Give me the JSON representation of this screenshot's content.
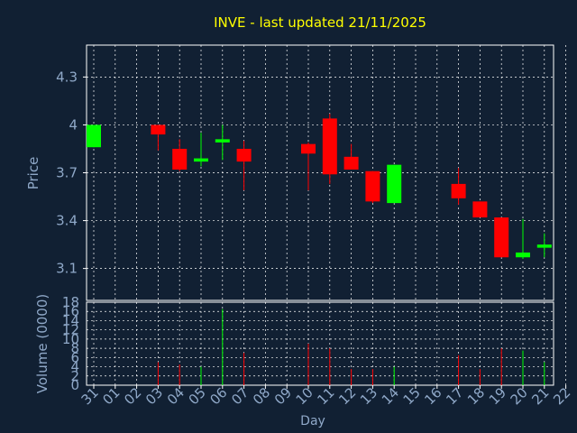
{
  "chart_data": {
    "type": "candlestick",
    "title": "INVE - last updated 21/11/2025",
    "xlabel": "Day",
    "price_panel": {
      "ylabel": "Price",
      "ylim": [
        2.9,
        4.5
      ],
      "yticks": [
        "3.1",
        "3.4",
        "3.7",
        "4",
        "4.3"
      ],
      "grid": true
    },
    "volume_panel": {
      "ylabel": "Volume (0000)",
      "ylim": [
        0,
        18
      ],
      "yticks": [
        "0",
        "2",
        "4",
        "6",
        "8",
        "10",
        "12",
        "14",
        "16",
        "18"
      ],
      "grid": true
    },
    "x_ticks": [
      "31",
      "01",
      "02",
      "03",
      "04",
      "05",
      "06",
      "07",
      "08",
      "09",
      "10",
      "11",
      "12",
      "13",
      "14",
      "15",
      "16",
      "17",
      "18",
      "19",
      "20",
      "21",
      "22"
    ],
    "candles": [
      {
        "x": 0,
        "open": 3.86,
        "high": 4.0,
        "low": 3.86,
        "close": 4.0,
        "volume": 0
      },
      {
        "x": 3,
        "open": 4.0,
        "high": 4.0,
        "low": 3.84,
        "close": 3.94,
        "volume": 5
      },
      {
        "x": 4,
        "open": 3.85,
        "high": 3.91,
        "low": 3.71,
        "close": 3.72,
        "volume": 4.5
      },
      {
        "x": 5,
        "open": 3.77,
        "high": 3.95,
        "low": 3.74,
        "close": 3.79,
        "volume": 4
      },
      {
        "x": 6,
        "open": 3.89,
        "high": 4.0,
        "low": 3.78,
        "close": 3.91,
        "volume": 16.5
      },
      {
        "x": 7,
        "open": 3.85,
        "high": 3.9,
        "low": 3.59,
        "close": 3.77,
        "volume": 7
      },
      {
        "x": 10,
        "open": 3.88,
        "high": 3.89,
        "low": 3.59,
        "close": 3.82,
        "volume": 9
      },
      {
        "x": 11,
        "open": 4.04,
        "high": 4.07,
        "low": 3.63,
        "close": 3.69,
        "volume": 8
      },
      {
        "x": 12,
        "open": 3.8,
        "high": 3.88,
        "low": 3.72,
        "close": 3.72,
        "volume": 3.5
      },
      {
        "x": 13,
        "open": 3.71,
        "high": 3.71,
        "low": 3.51,
        "close": 3.52,
        "volume": 3.5
      },
      {
        "x": 14,
        "open": 3.51,
        "high": 3.75,
        "low": 3.51,
        "close": 3.75,
        "volume": 4
      },
      {
        "x": 17,
        "open": 3.63,
        "high": 3.73,
        "low": 3.5,
        "close": 3.54,
        "volume": 6.5
      },
      {
        "x": 18,
        "open": 3.52,
        "high": 3.52,
        "low": 3.42,
        "close": 3.42,
        "volume": 3.5
      },
      {
        "x": 19,
        "open": 3.42,
        "high": 3.42,
        "low": 3.17,
        "close": 3.17,
        "volume": 8
      },
      {
        "x": 20,
        "open": 3.17,
        "high": 3.41,
        "low": 3.16,
        "close": 3.2,
        "volume": 7.5
      },
      {
        "x": 21,
        "open": 3.23,
        "high": 3.32,
        "low": 3.17,
        "close": 3.25,
        "volume": 5
      }
    ],
    "colors": {
      "background": "#112033",
      "up": "#00ff00",
      "down": "#ff0000",
      "axis": "#ffffff",
      "grid": "#ffffff",
      "title": "#ffff00",
      "label": "#8fa8c8"
    }
  }
}
